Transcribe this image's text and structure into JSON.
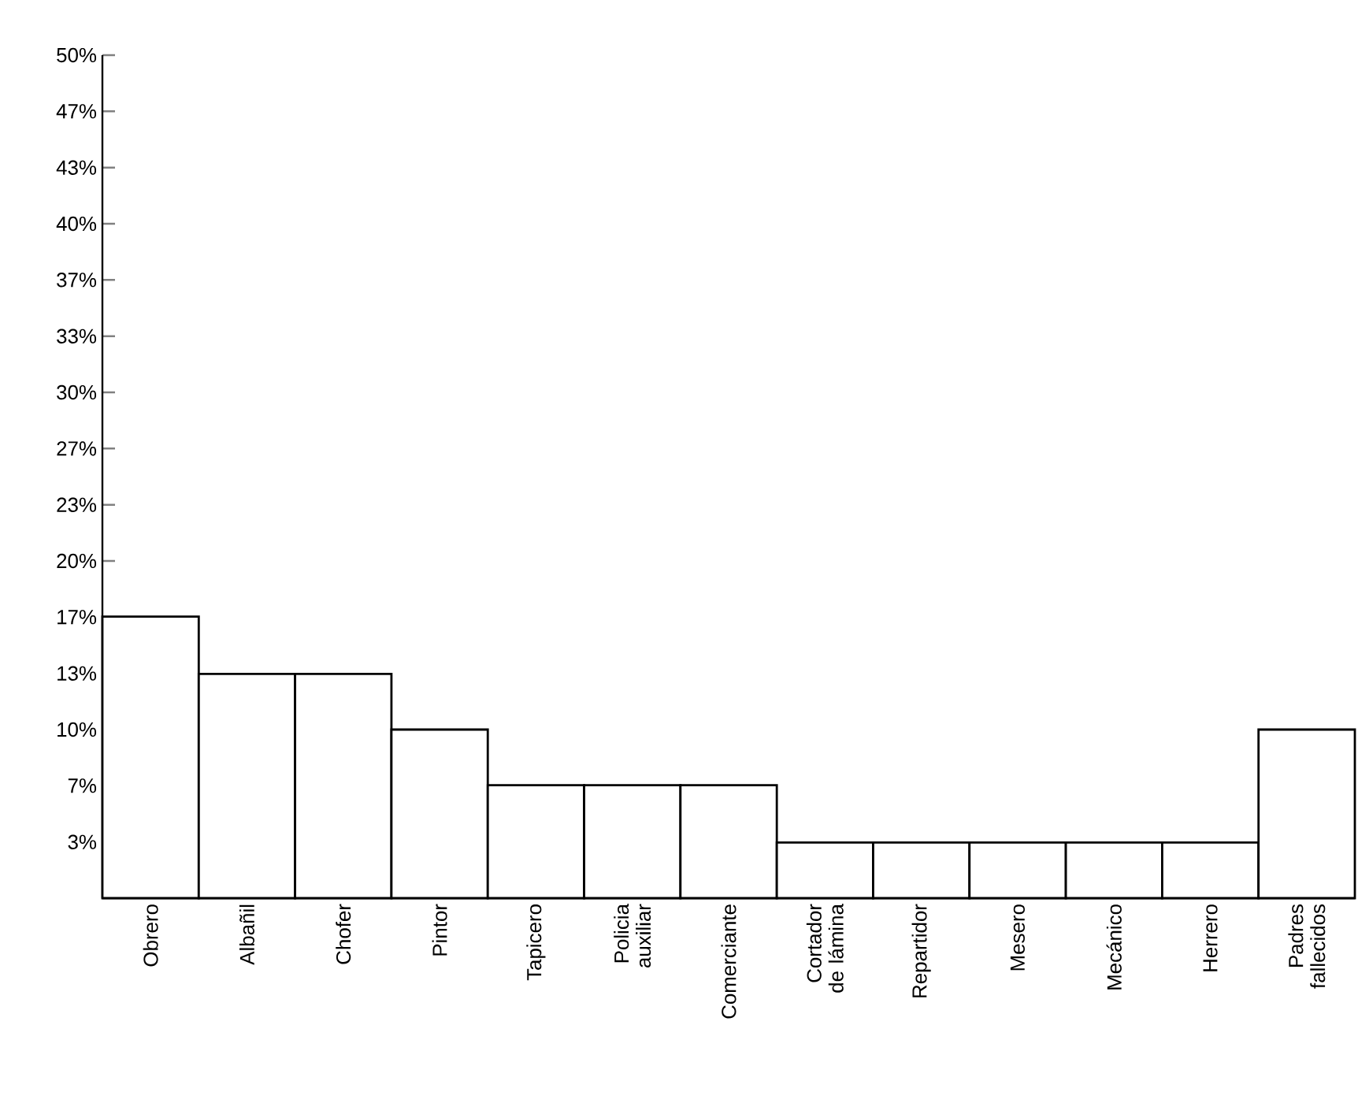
{
  "chart_data": {
    "type": "bar",
    "categories": [
      "Obrero",
      "Albañil",
      "Chofer",
      "Pintor",
      "Tapicero",
      "Policia auxiliar",
      "Comerciante",
      "Cortador de lámina",
      "Repartidor",
      "Mesero",
      "Mecánico",
      "Herrero",
      "Padres fallecidos"
    ],
    "values": [
      16.7,
      13.3,
      13.3,
      10,
      6.7,
      6.7,
      6.7,
      3.3,
      3.3,
      3.3,
      3.3,
      3.3,
      10
    ],
    "color": "#000000",
    "ylim": [
      0,
      50
    ],
    "yticks": [
      {
        "value": 3.33,
        "label": "3%"
      },
      {
        "value": 6.67,
        "label": "7%"
      },
      {
        "value": 10,
        "label": "10%"
      },
      {
        "value": 13.33,
        "label": "13%"
      },
      {
        "value": 16.67,
        "label": "17%"
      },
      {
        "value": 20,
        "label": "20%"
      },
      {
        "value": 23.33,
        "label": "23%"
      },
      {
        "value": 26.67,
        "label": "27%"
      },
      {
        "value": 30,
        "label": "30%"
      },
      {
        "value": 33.33,
        "label": "33%"
      },
      {
        "value": 36.67,
        "label": "37%"
      },
      {
        "value": 40,
        "label": "40%"
      },
      {
        "value": 43.33,
        "label": "43%"
      },
      {
        "value": 46.67,
        "label": "47%"
      },
      {
        "value": 50,
        "label": "50%"
      }
    ],
    "grid": false
  }
}
